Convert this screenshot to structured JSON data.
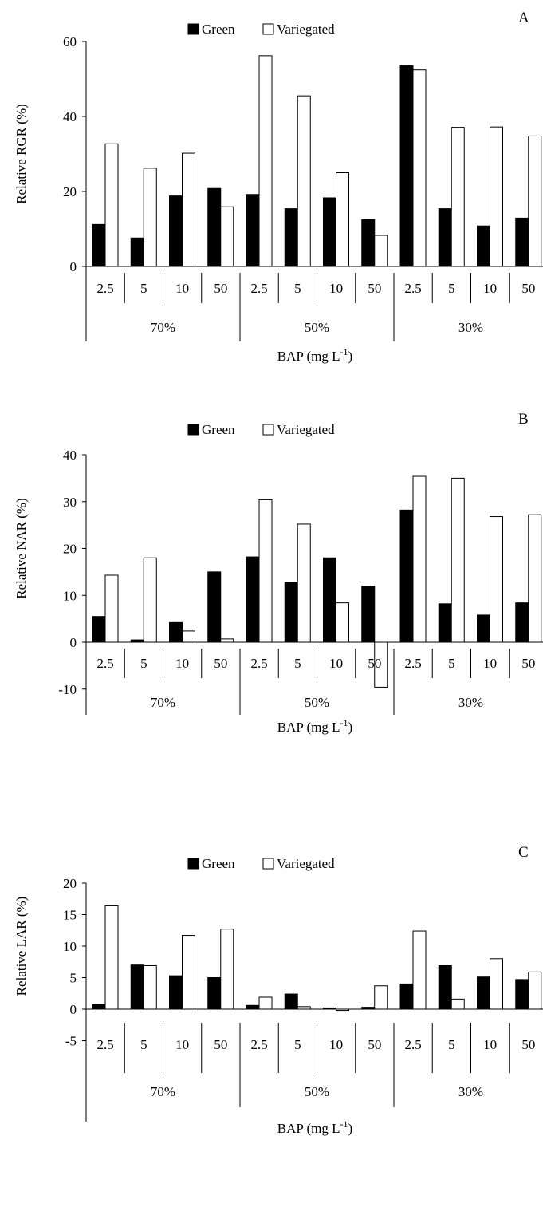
{
  "legend": {
    "green": "Green",
    "variegated": "Variegated"
  },
  "x_axis": {
    "title": "BAP (mg L",
    "title_superscript": "-1",
    "title_suffix": ")",
    "bap_levels": [
      "2.5",
      "5",
      "10",
      "50"
    ],
    "groups": [
      "70%",
      "50%",
      "30%"
    ]
  },
  "colors": {
    "green": "#000000",
    "variegated": "#ffffff",
    "stroke": "#000000"
  },
  "chart_data": [
    {
      "type": "bar",
      "panel": "A",
      "ylabel": "Relative RGR (%)",
      "ylim": [
        0,
        60
      ],
      "yticks": [
        0,
        20,
        40,
        60
      ],
      "categories": [
        "2.5",
        "5",
        "10",
        "50",
        "2.5",
        "5",
        "10",
        "50",
        "2.5",
        "5",
        "10",
        "50"
      ],
      "series": [
        {
          "name": "Green",
          "values": [
            11.2,
            7.6,
            18.8,
            20.8,
            19.2,
            15.4,
            18.3,
            12.5,
            53.5,
            15.4,
            10.8,
            12.9
          ]
        },
        {
          "name": "Variegated",
          "values": [
            32.7,
            26.2,
            30.2,
            15.9,
            56.2,
            45.5,
            25.0,
            8.3,
            52.4,
            37.1,
            37.2,
            34.8
          ]
        }
      ]
    },
    {
      "type": "bar",
      "panel": "B",
      "ylabel": "Relative NAR (%)",
      "ylim": [
        -10,
        40
      ],
      "yticks": [
        -10,
        0,
        10,
        20,
        30,
        40
      ],
      "categories": [
        "2.5",
        "5",
        "10",
        "50",
        "2.5",
        "5",
        "10",
        "50",
        "2.5",
        "5",
        "10",
        "50"
      ],
      "series": [
        {
          "name": "Green",
          "values": [
            5.5,
            0.5,
            4.2,
            15.0,
            18.2,
            12.8,
            18.0,
            12.0,
            28.2,
            8.2,
            5.8,
            8.4
          ]
        },
        {
          "name": "Variegated",
          "values": [
            14.3,
            18.0,
            2.4,
            0.7,
            30.4,
            25.2,
            8.4,
            -9.6,
            35.4,
            35.0,
            26.8,
            27.2
          ]
        }
      ]
    },
    {
      "type": "bar",
      "panel": "C",
      "ylabel": "Relative LAR (%)",
      "ylim": [
        -5,
        20
      ],
      "yticks": [
        -5,
        0,
        5,
        10,
        15,
        20
      ],
      "categories": [
        "2.5",
        "5",
        "10",
        "50",
        "2.5",
        "5",
        "10",
        "50",
        "2.5",
        "5",
        "10",
        "50"
      ],
      "series": [
        {
          "name": "Green",
          "values": [
            0.7,
            7.0,
            5.3,
            5.0,
            0.6,
            2.4,
            0.2,
            0.3,
            4.0,
            6.9,
            5.1,
            4.7
          ]
        },
        {
          "name": "Variegated",
          "values": [
            16.4,
            6.9,
            11.7,
            12.7,
            1.9,
            0.4,
            -0.2,
            3.7,
            12.4,
            1.6,
            8.0,
            5.9
          ]
        }
      ]
    }
  ]
}
